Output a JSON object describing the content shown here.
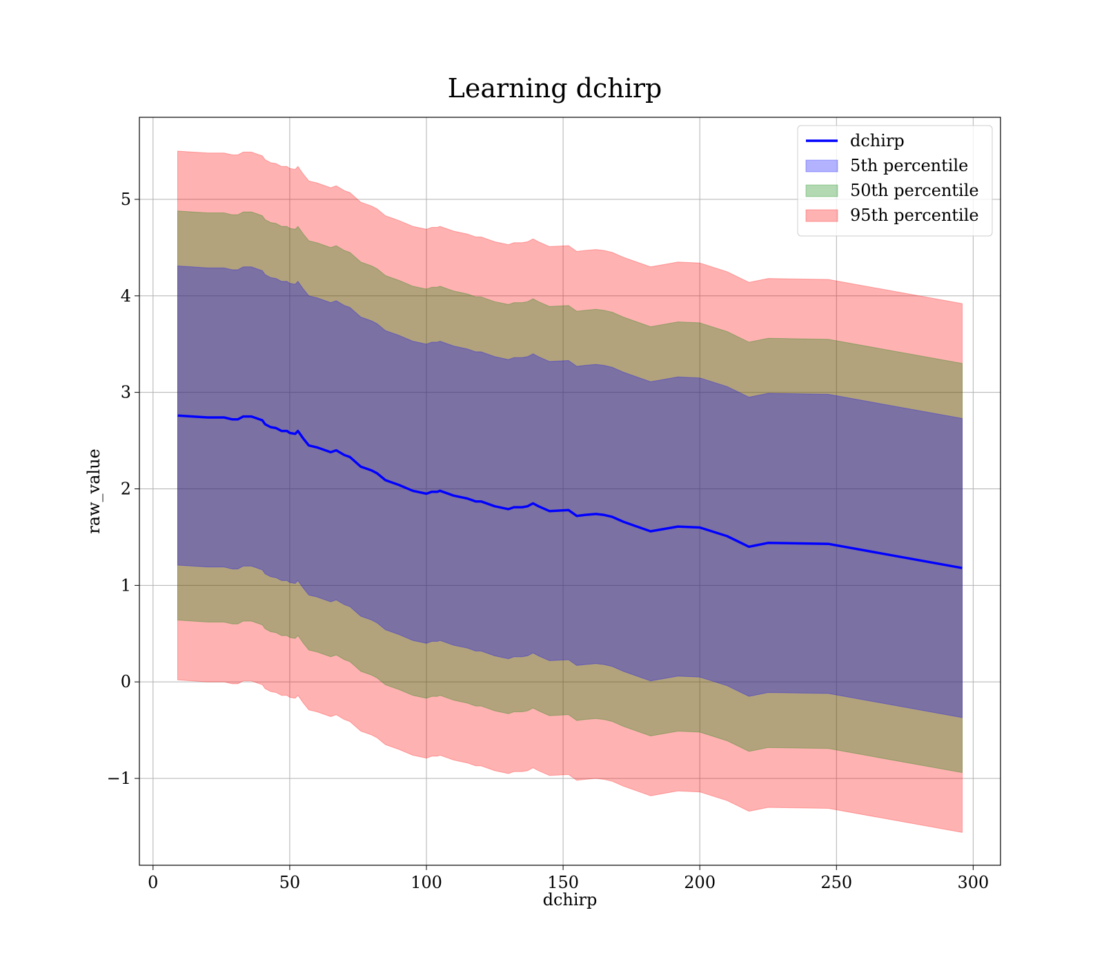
{
  "chart_data": {
    "type": "line",
    "title": "Learning dchirp",
    "xlabel": "dchirp",
    "ylabel": "raw_value",
    "xlim": [
      -5,
      310
    ],
    "ylim": [
      -1.9,
      5.85
    ],
    "xticks": [
      0,
      50,
      100,
      150,
      200,
      250,
      300
    ],
    "xtick_labels": [
      "0",
      "50",
      "100",
      "150",
      "200",
      "250",
      "300"
    ],
    "yticks": [
      -1,
      0,
      1,
      2,
      3,
      4,
      5
    ],
    "ytick_labels": [
      "−1",
      "0",
      "1",
      "2",
      "3",
      "4",
      "5"
    ],
    "grid": true,
    "legend_position": "top-right",
    "line": {
      "name": "dchirp",
      "color": "#0000ff",
      "x": [
        9,
        20,
        26,
        29,
        31,
        33,
        36,
        38,
        40,
        41,
        43,
        45,
        47,
        49,
        50,
        52,
        53,
        55,
        57,
        60,
        65,
        67,
        70,
        72,
        74,
        76,
        80,
        82,
        85,
        88,
        90,
        95,
        100,
        102,
        104,
        105,
        110,
        115,
        118,
        120,
        125,
        130,
        132,
        135,
        137,
        139,
        141,
        145,
        152,
        155,
        158,
        162,
        165,
        168,
        172,
        177,
        182,
        192,
        200,
        210,
        218,
        225,
        247,
        296
      ],
      "y": [
        2.76,
        2.74,
        2.74,
        2.72,
        2.72,
        2.75,
        2.75,
        2.73,
        2.71,
        2.67,
        2.64,
        2.63,
        2.6,
        2.6,
        2.58,
        2.57,
        2.6,
        2.52,
        2.45,
        2.43,
        2.38,
        2.4,
        2.35,
        2.33,
        2.28,
        2.23,
        2.19,
        2.16,
        2.09,
        2.06,
        2.04,
        1.98,
        1.95,
        1.97,
        1.97,
        1.98,
        1.93,
        1.9,
        1.87,
        1.87,
        1.82,
        1.79,
        1.81,
        1.81,
        1.82,
        1.85,
        1.82,
        1.77,
        1.78,
        1.72,
        1.73,
        1.74,
        1.73,
        1.71,
        1.66,
        1.61,
        1.56,
        1.61,
        1.6,
        1.51,
        1.4,
        1.44,
        1.43,
        1.18
      ]
    },
    "bands": [
      {
        "name": "5th percentile",
        "color": "#0000ff",
        "opacity": 0.3,
        "half_width": 1.55
      },
      {
        "name": "50th percentile",
        "color": "#008000",
        "opacity": 0.3,
        "half_width": 2.12
      },
      {
        "name": "95th percentile",
        "color": "#ff0000",
        "opacity": 0.3,
        "half_width": 2.74
      }
    ],
    "legend": [
      {
        "label": "dchirp",
        "kind": "line",
        "color": "#0000ff"
      },
      {
        "label": "5th percentile",
        "kind": "patch",
        "color": "#0000ff"
      },
      {
        "label": "50th percentile",
        "kind": "patch",
        "color": "#008000"
      },
      {
        "label": "95th percentile",
        "kind": "patch",
        "color": "#ff0000"
      }
    ]
  }
}
